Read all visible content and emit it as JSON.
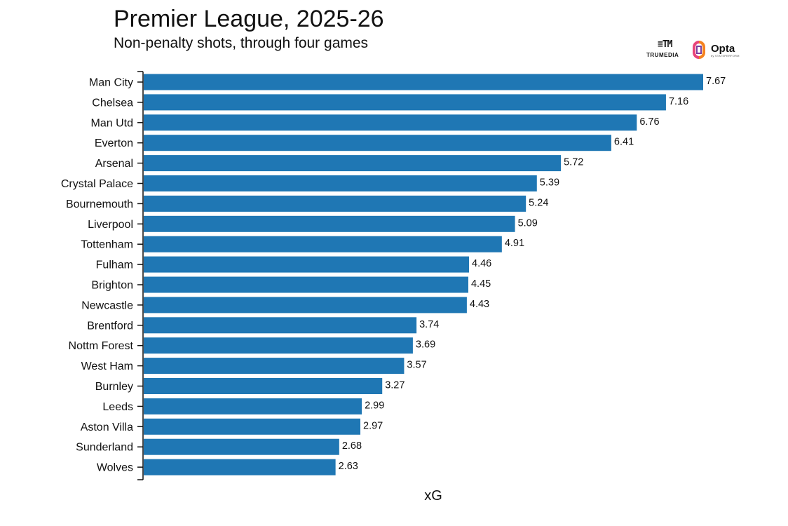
{
  "header": {
    "title": "Premier League, 2025-26",
    "subtitle": "Non-penalty shots, through four games"
  },
  "logos": {
    "trumedia_word": "TRUMEDIA",
    "opta_word": "Opta",
    "opta_sub": "by STATSPERFORM"
  },
  "colors": {
    "bar": "#1f77b4",
    "axis": "#111111",
    "text": "#111111"
  },
  "chart_data": {
    "type": "bar",
    "orientation": "horizontal",
    "title": "Premier League, 2025-26",
    "subtitle": "Non-penalty shots, through four games",
    "xlabel": "xG",
    "ylabel": "",
    "categories": [
      "Man City",
      "Chelsea",
      "Man Utd",
      "Everton",
      "Arsenal",
      "Crystal Palace",
      "Bournemouth",
      "Liverpool",
      "Tottenham",
      "Fulham",
      "Brighton",
      "Newcastle",
      "Brentford",
      "Nottm Forest",
      "West Ham",
      "Burnley",
      "Leeds",
      "Aston Villa",
      "Sunderland",
      "Wolves"
    ],
    "values": [
      7.67,
      7.16,
      6.76,
      6.41,
      5.72,
      5.39,
      5.24,
      5.09,
      4.91,
      4.46,
      4.45,
      4.43,
      3.74,
      3.69,
      3.57,
      3.27,
      2.99,
      2.97,
      2.68,
      2.63
    ],
    "value_labels": [
      "7.67",
      "7.16",
      "6.76",
      "6.41",
      "5.72",
      "5.39",
      "5.24",
      "5.09",
      "4.91",
      "4.46",
      "4.45",
      "4.43",
      "3.74",
      "3.69",
      "3.57",
      "3.27",
      "2.99",
      "2.97",
      "2.68",
      "2.63"
    ],
    "xlim": [
      0,
      7.67
    ],
    "grid": false,
    "legend": "none"
  }
}
